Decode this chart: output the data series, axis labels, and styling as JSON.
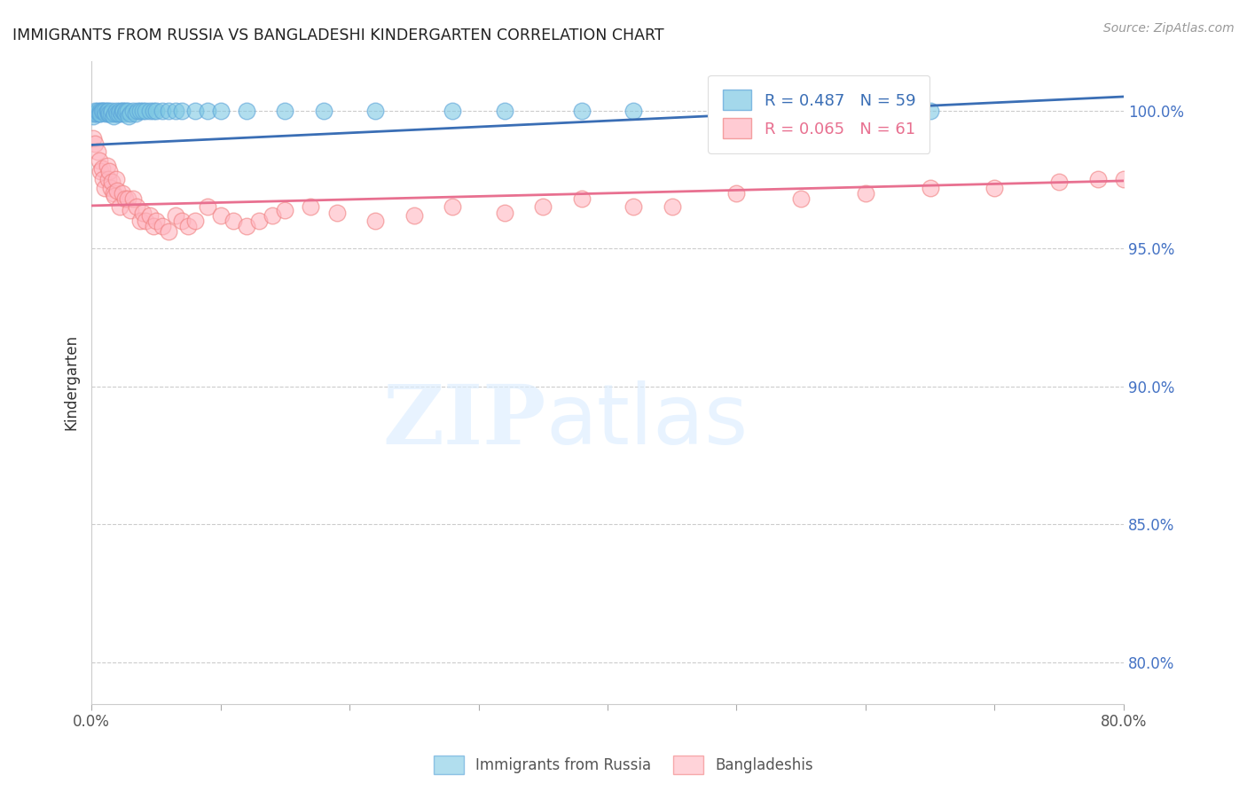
{
  "title": "IMMIGRANTS FROM RUSSIA VS BANGLADESHI KINDERGARTEN CORRELATION CHART",
  "source": "Source: ZipAtlas.com",
  "ylabel": "Kindergarten",
  "ytick_labels": [
    "100.0%",
    "95.0%",
    "90.0%",
    "85.0%",
    "80.0%"
  ],
  "ytick_values": [
    1.0,
    0.95,
    0.9,
    0.85,
    0.8
  ],
  "xlim": [
    0.0,
    0.8
  ],
  "ylim": [
    0.785,
    1.018
  ],
  "legend_r1": "R = 0.487   N = 59",
  "legend_r2": "R = 0.065   N = 61",
  "blue_color": "#7ec8e3",
  "pink_color": "#ffb6c1",
  "blue_edge_color": "#5ba3d9",
  "pink_edge_color": "#f08080",
  "blue_line_color": "#3a6eb5",
  "pink_line_color": "#e87090",
  "blue_scatter_x": [
    0.001,
    0.002,
    0.003,
    0.004,
    0.005,
    0.006,
    0.007,
    0.007,
    0.008,
    0.009,
    0.01,
    0.011,
    0.012,
    0.013,
    0.013,
    0.014,
    0.015,
    0.016,
    0.017,
    0.018,
    0.019,
    0.02,
    0.021,
    0.022,
    0.023,
    0.024,
    0.025,
    0.026,
    0.027,
    0.028,
    0.029,
    0.03,
    0.032,
    0.034,
    0.036,
    0.038,
    0.04,
    0.042,
    0.045,
    0.048,
    0.05,
    0.055,
    0.06,
    0.065,
    0.07,
    0.08,
    0.09,
    0.1,
    0.12,
    0.15,
    0.18,
    0.22,
    0.28,
    0.32,
    0.38,
    0.42,
    0.5,
    0.58,
    0.65
  ],
  "blue_scatter_y": [
    0.998,
    0.999,
    1.0,
    0.999,
    1.0,
    0.999,
    1.0,
    0.999,
    1.0,
    1.0,
    1.0,
    0.999,
    1.0,
    0.999,
    1.0,
    0.999,
    0.999,
    1.0,
    0.998,
    0.999,
    1.0,
    0.999,
    0.999,
    1.0,
    0.999,
    1.0,
    1.0,
    0.999,
    1.0,
    1.0,
    0.998,
    0.999,
    1.0,
    0.999,
    1.0,
    1.0,
    1.0,
    1.0,
    1.0,
    1.0,
    1.0,
    1.0,
    1.0,
    1.0,
    1.0,
    1.0,
    1.0,
    1.0,
    1.0,
    1.0,
    1.0,
    1.0,
    1.0,
    1.0,
    1.0,
    1.0,
    1.0,
    1.0,
    1.0
  ],
  "pink_scatter_x": [
    0.001,
    0.003,
    0.005,
    0.006,
    0.007,
    0.008,
    0.009,
    0.01,
    0.012,
    0.013,
    0.014,
    0.015,
    0.016,
    0.017,
    0.018,
    0.019,
    0.02,
    0.022,
    0.024,
    0.026,
    0.028,
    0.03,
    0.032,
    0.035,
    0.038,
    0.04,
    0.042,
    0.045,
    0.048,
    0.05,
    0.055,
    0.06,
    0.065,
    0.07,
    0.075,
    0.08,
    0.09,
    0.1,
    0.11,
    0.12,
    0.13,
    0.14,
    0.15,
    0.17,
    0.19,
    0.22,
    0.25,
    0.28,
    0.32,
    0.35,
    0.38,
    0.42,
    0.45,
    0.5,
    0.55,
    0.6,
    0.65,
    0.7,
    0.75,
    0.78,
    0.8
  ],
  "pink_scatter_y": [
    0.99,
    0.988,
    0.985,
    0.982,
    0.978,
    0.979,
    0.975,
    0.972,
    0.98,
    0.975,
    0.978,
    0.972,
    0.974,
    0.97,
    0.969,
    0.975,
    0.971,
    0.965,
    0.97,
    0.968,
    0.968,
    0.964,
    0.968,
    0.965,
    0.96,
    0.963,
    0.96,
    0.962,
    0.958,
    0.96,
    0.958,
    0.956,
    0.962,
    0.96,
    0.958,
    0.96,
    0.965,
    0.962,
    0.96,
    0.958,
    0.96,
    0.962,
    0.964,
    0.965,
    0.963,
    0.96,
    0.962,
    0.965,
    0.963,
    0.965,
    0.968,
    0.965,
    0.965,
    0.97,
    0.968,
    0.97,
    0.972,
    0.972,
    0.974,
    0.975,
    0.975
  ],
  "blue_trend_x": [
    0.0,
    0.8
  ],
  "blue_trend_y": [
    0.9875,
    1.005
  ],
  "pink_trend_y": [
    0.9655,
    0.9745
  ]
}
